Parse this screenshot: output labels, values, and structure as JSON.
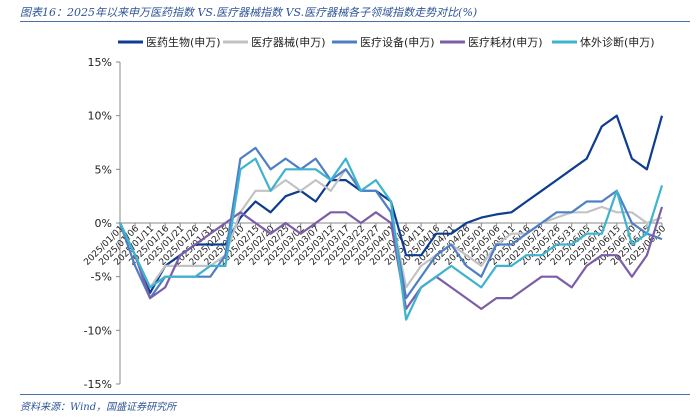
{
  "title": "图表16：2025年以来申万医药指数 VS.医疗器械指数 VS.医疗器械各子领域指数走势对比(%)",
  "source": "资料来源：Wind，国盛证券研究所",
  "chart_data": {
    "type": "line",
    "title": "图表16：2025年以来申万医药指数 VS.医疗器械指数 VS.医疗器械各子领域指数走势对比(%)",
    "xlabel": "",
    "ylabel": "",
    "ylim": [
      -15,
      15
    ],
    "yticks": [
      15,
      10,
      5,
      0,
      -5,
      -10,
      -15
    ],
    "ytick_labels": [
      "15%",
      "10%",
      "5%",
      "0%",
      "-5%",
      "-10%",
      "-15%"
    ],
    "grid": false,
    "legend": "top",
    "x": [
      "2025/01/01",
      "2025/01/06",
      "2025/01/11",
      "2025/01/16",
      "2025/01/21",
      "2025/01/26",
      "2025/01/31",
      "2025/02/05",
      "2025/02/10",
      "2025/02/15",
      "2025/02/20",
      "2025/02/25",
      "2025/03/02",
      "2025/03/07",
      "2025/03/12",
      "2025/03/17",
      "2025/03/22",
      "2025/03/27",
      "2025/04/01",
      "2025/04/06",
      "2025/04/11",
      "2025/04/16",
      "2025/04/21",
      "2025/04/26",
      "2025/05/01",
      "2025/05/06",
      "2025/05/11",
      "2025/05/16",
      "2025/05/21",
      "2025/05/26",
      "2025/05/31",
      "2025/06/05",
      "2025/06/10",
      "2025/06/15",
      "2025/06/20",
      "2025/06/25",
      "2025/06/30"
    ],
    "series": [
      {
        "name": "医药生物(申万)",
        "color": "#0D3C91",
        "values": [
          0,
          -3,
          -6.5,
          -4,
          -3,
          -2,
          -2,
          -2,
          0.5,
          2,
          1,
          2.5,
          3,
          2,
          4,
          4,
          3,
          3,
          2,
          -3,
          -3,
          -1,
          -1,
          0,
          0.5,
          0.8,
          1,
          2,
          3,
          4,
          5,
          6,
          9,
          10,
          6,
          5,
          10
        ]
      },
      {
        "name": "医疗器械(申万)",
        "color": "#C3C3C3",
        "values": [
          0,
          -3,
          -6,
          -4,
          -4,
          -4,
          -4,
          -3,
          1,
          3,
          3,
          4,
          3,
          4,
          3,
          5,
          3,
          3,
          1,
          -6,
          -4,
          -3,
          -2,
          -3,
          -4,
          -2,
          -1,
          -1,
          0,
          0.5,
          1,
          1,
          1.5,
          1,
          1,
          0,
          0.5
        ]
      },
      {
        "name": "医疗设备(申万)",
        "color": "#4E7FC6",
        "values": [
          0,
          -4,
          -7,
          -5,
          -5,
          -5,
          -5,
          -3,
          6,
          7,
          5,
          6,
          5,
          6,
          4,
          5,
          3,
          3,
          1,
          -7,
          -5,
          -3,
          -2,
          -4,
          -5,
          -2,
          -2,
          -1,
          0,
          1,
          1,
          2,
          2,
          3,
          0,
          -1,
          -1.5
        ]
      },
      {
        "name": "医疗耗材(申万)",
        "color": "#7B5EA8",
        "values": [
          0,
          -3,
          -7,
          -6,
          -3,
          -2,
          -1,
          0,
          1,
          0,
          -1,
          0,
          -1,
          0,
          1,
          1,
          0,
          1,
          0,
          -8,
          -6,
          -5,
          -6,
          -7,
          -8,
          -7,
          -7,
          -6,
          -5,
          -5,
          -6,
          -4,
          -3,
          -3,
          -5,
          -3,
          1.5
        ]
      },
      {
        "name": "体外诊断(申万)",
        "color": "#3DB3CF",
        "values": [
          0,
          -3,
          -6,
          -5,
          -5,
          -5,
          -4,
          -4,
          5,
          6,
          3,
          5,
          5,
          5,
          4,
          6,
          3,
          4,
          2,
          -9,
          -6,
          -5,
          -4,
          -5,
          -6,
          -4,
          -4,
          -3,
          -3,
          -2,
          -2,
          -1,
          -1,
          3,
          -2,
          -1,
          3.5
        ]
      }
    ]
  }
}
